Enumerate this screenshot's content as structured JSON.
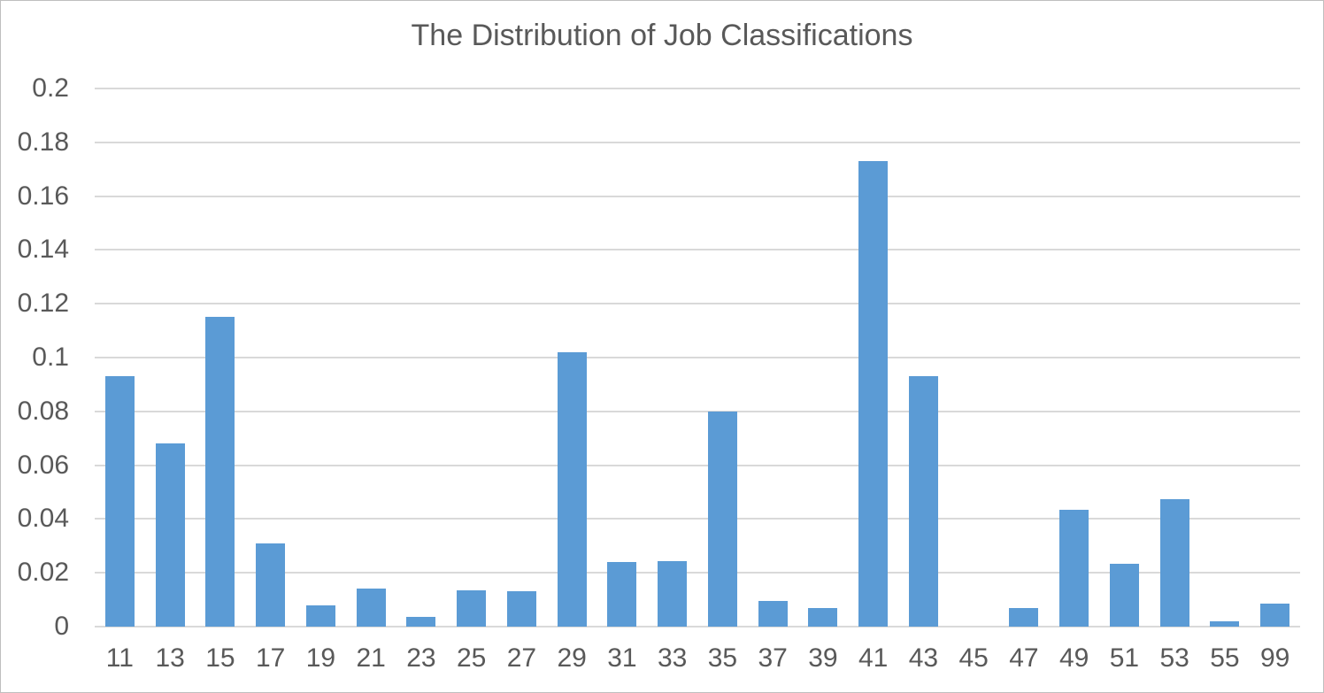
{
  "chart_data": {
    "type": "bar",
    "title": "The Distribution of Job Classifications",
    "xlabel": "",
    "ylabel": "",
    "categories": [
      "11",
      "13",
      "15",
      "17",
      "19",
      "21",
      "23",
      "25",
      "27",
      "29",
      "31",
      "33",
      "35",
      "37",
      "39",
      "41",
      "43",
      "45",
      "47",
      "49",
      "51",
      "53",
      "55",
      "99"
    ],
    "values": [
      0.093,
      0.068,
      0.115,
      0.031,
      0.008,
      0.014,
      0.0035,
      0.0135,
      0.013,
      0.102,
      0.024,
      0.0245,
      0.08,
      0.0095,
      0.007,
      0.173,
      0.093,
      0,
      0.007,
      0.0435,
      0.0235,
      0.0475,
      0.002,
      0.0085
    ],
    "ylim": [
      0,
      0.2
    ],
    "yticks": [
      0,
      0.02,
      0.04,
      0.06,
      0.08,
      0.1,
      0.12,
      0.14,
      0.16,
      0.18,
      0.2
    ],
    "ytick_labels": [
      "0",
      "0.02",
      "0.04",
      "0.06",
      "0.08",
      "0.1",
      "0.12",
      "0.14",
      "0.16",
      "0.18",
      "0.2"
    ],
    "grid": true,
    "legend": false,
    "colors": {
      "bar": "#5B9BD5",
      "gridline": "#D9D9D9",
      "axis_line": "#D9D9D9",
      "text": "#595959",
      "background": "#FFFFFF",
      "border": "#BFBFBF"
    }
  }
}
